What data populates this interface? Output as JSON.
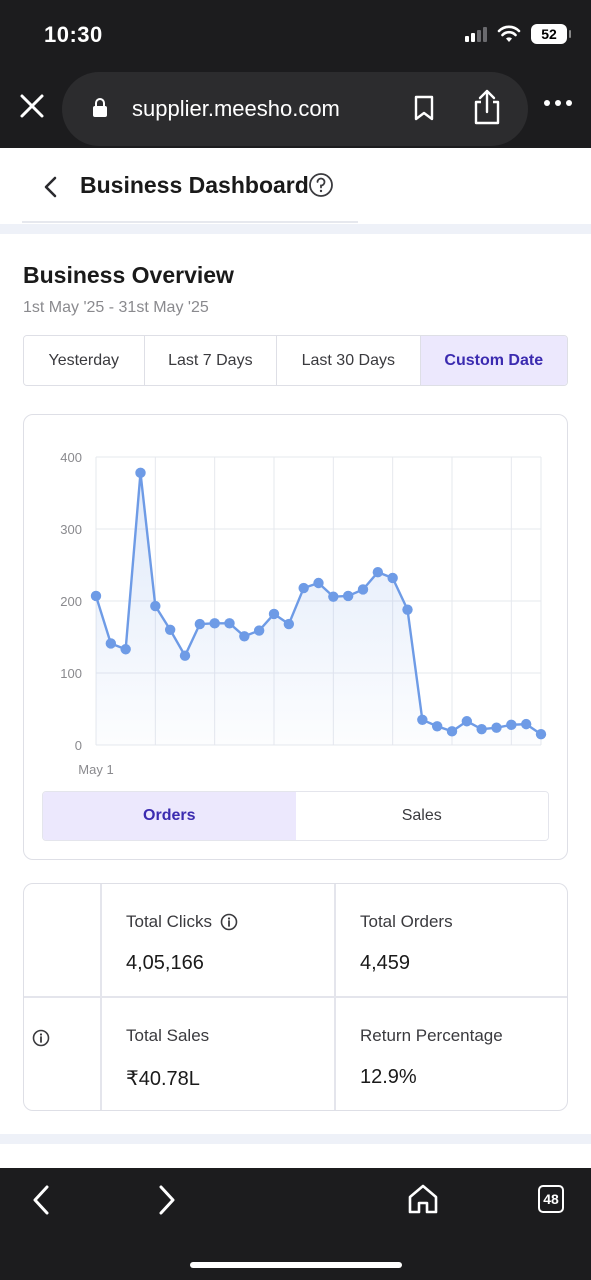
{
  "status_bar": {
    "time": "10:30",
    "battery": "52"
  },
  "browser": {
    "url": "supplier.meesho.com",
    "tab_count": "48"
  },
  "header": {
    "title": "Business Dashboard"
  },
  "overview": {
    "title": "Business Overview",
    "date_range": "1st May '25 - 31st May '25",
    "tabs": [
      {
        "label": "Yesterday",
        "active": false
      },
      {
        "label": "Last 7 Days",
        "active": false
      },
      {
        "label": "Last 30 Days",
        "active": false
      },
      {
        "label": "Custom Date",
        "active": true
      }
    ]
  },
  "chart_data": {
    "type": "area",
    "title": "",
    "xlabel": "",
    "ylabel": "",
    "x_tick_labels": [
      "May 1"
    ],
    "y_ticks": [
      0,
      100,
      200,
      300,
      400
    ],
    "ylim": [
      0,
      400
    ],
    "grid": true,
    "series": [
      {
        "values": [
          207,
          141,
          133,
          378,
          193,
          160,
          124,
          168,
          169,
          169,
          151,
          159,
          182,
          168,
          218,
          225,
          206,
          207,
          216,
          240,
          232,
          188,
          35,
          26,
          19,
          33,
          22,
          24,
          28,
          29,
          15
        ],
        "color": "#6e9be6"
      }
    ]
  },
  "metric_toggle": {
    "orders": "Orders",
    "sales": "Sales"
  },
  "stats": {
    "total_clicks_label": "Total Clicks",
    "total_clicks_value": "4,05,166",
    "total_orders_label": "Total Orders",
    "total_orders_value": "4,459",
    "total_sales_label": "Total Sales",
    "total_sales_value": "₹40.78L",
    "return_pct_label": "Return Percentage",
    "return_pct_value": "12.9%"
  },
  "colors": {
    "accent": "#3b2bb0",
    "accent_bg": "#ece8fd",
    "line": "#6e9be6",
    "chrome": "#1c1c1e"
  },
  "icons": [
    "close-icon",
    "lock-icon",
    "bookmark-icon",
    "share-icon",
    "more-icon",
    "back-chevron-icon",
    "help-icon",
    "info-icon",
    "nav-back-icon",
    "nav-forward-icon",
    "home-icon",
    "tabs-icon"
  ]
}
